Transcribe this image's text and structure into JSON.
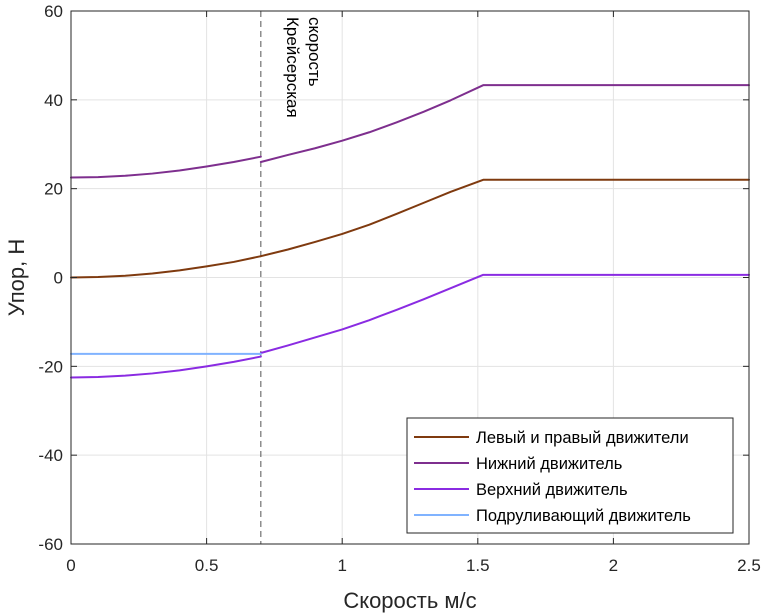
{
  "chart_data": {
    "type": "line",
    "xlabel": "Скорость м/с",
    "ylabel": "Упор, Н",
    "xlim": [
      0,
      2.5
    ],
    "ylim": [
      -60,
      60
    ],
    "xticks": [
      0,
      0.5,
      1,
      1.5,
      2,
      2.5
    ],
    "xtick_labels": [
      "0",
      "0.5",
      "1",
      "1.5",
      "2",
      "2.5"
    ],
    "yticks": [
      -60,
      -40,
      -20,
      0,
      20,
      40,
      60
    ],
    "ytick_labels": [
      "-60",
      "-40",
      "-20",
      "0",
      "20",
      "40",
      "60"
    ],
    "grid": true,
    "legend_position": "bottom-right",
    "annotation": {
      "x": 0.7,
      "line_style": "dashed",
      "lines": [
        "Крейсерская",
        "скорость"
      ]
    },
    "series": [
      {
        "name": "Левый и правый движители",
        "color": "#7F3A0F",
        "segments": [
          {
            "x": [
              0,
              0.1,
              0.2,
              0.3,
              0.4,
              0.5,
              0.6,
              0.7
            ],
            "y": [
              0,
              0.1,
              0.4,
              0.9,
              1.6,
              2.5,
              3.5,
              4.8
            ]
          },
          {
            "x": [
              0.7,
              0.8,
              0.9,
              1.0,
              1.1,
              1.2,
              1.3,
              1.4,
              1.52,
              1.6,
              1.8,
              2.0,
              2.2,
              2.5
            ],
            "y": [
              4.8,
              6.3,
              8.0,
              9.8,
              11.9,
              14.3,
              16.8,
              19.3,
              22.0,
              22.0,
              22.0,
              22.0,
              22.0,
              22.0
            ]
          }
        ]
      },
      {
        "name": "Нижний движитель",
        "color": "#7E2F8E",
        "segments": [
          {
            "x": [
              0,
              0.1,
              0.2,
              0.3,
              0.4,
              0.5,
              0.6,
              0.7
            ],
            "y": [
              22.5,
              22.6,
              22.9,
              23.4,
              24.1,
              25.0,
              26.0,
              27.2
            ]
          },
          {
            "x": [
              0.7,
              0.8,
              0.9,
              1.0,
              1.1,
              1.2,
              1.3,
              1.4,
              1.52,
              1.6,
              1.8,
              2.0,
              2.2,
              2.5
            ],
            "y": [
              26.0,
              27.6,
              29.1,
              30.8,
              32.7,
              34.9,
              37.3,
              39.9,
              43.3,
              43.3,
              43.3,
              43.3,
              43.3,
              43.3
            ]
          }
        ]
      },
      {
        "name": "Верхний движитель",
        "color": "#8A2BE2",
        "segments": [
          {
            "x": [
              0,
              0.1,
              0.2,
              0.3,
              0.4,
              0.5,
              0.6,
              0.7
            ],
            "y": [
              -22.5,
              -22.4,
              -22.1,
              -21.6,
              -20.9,
              -20.0,
              -19.0,
              -17.8
            ]
          },
          {
            "x": [
              0.7,
              0.8,
              0.9,
              1.0,
              1.1,
              1.2,
              1.3,
              1.4,
              1.52,
              1.6,
              1.8,
              2.0,
              2.2,
              2.5
            ],
            "y": [
              -17.0,
              -15.3,
              -13.5,
              -11.7,
              -9.6,
              -7.3,
              -4.9,
              -2.4,
              0.6,
              0.6,
              0.6,
              0.6,
              0.6,
              0.6
            ]
          }
        ]
      },
      {
        "name": "Подруливающий движитель",
        "color": "#80B3FF",
        "segments": [
          {
            "x": [
              0,
              0.7
            ],
            "y": [
              -17.2,
              -17.2
            ]
          }
        ]
      }
    ]
  }
}
